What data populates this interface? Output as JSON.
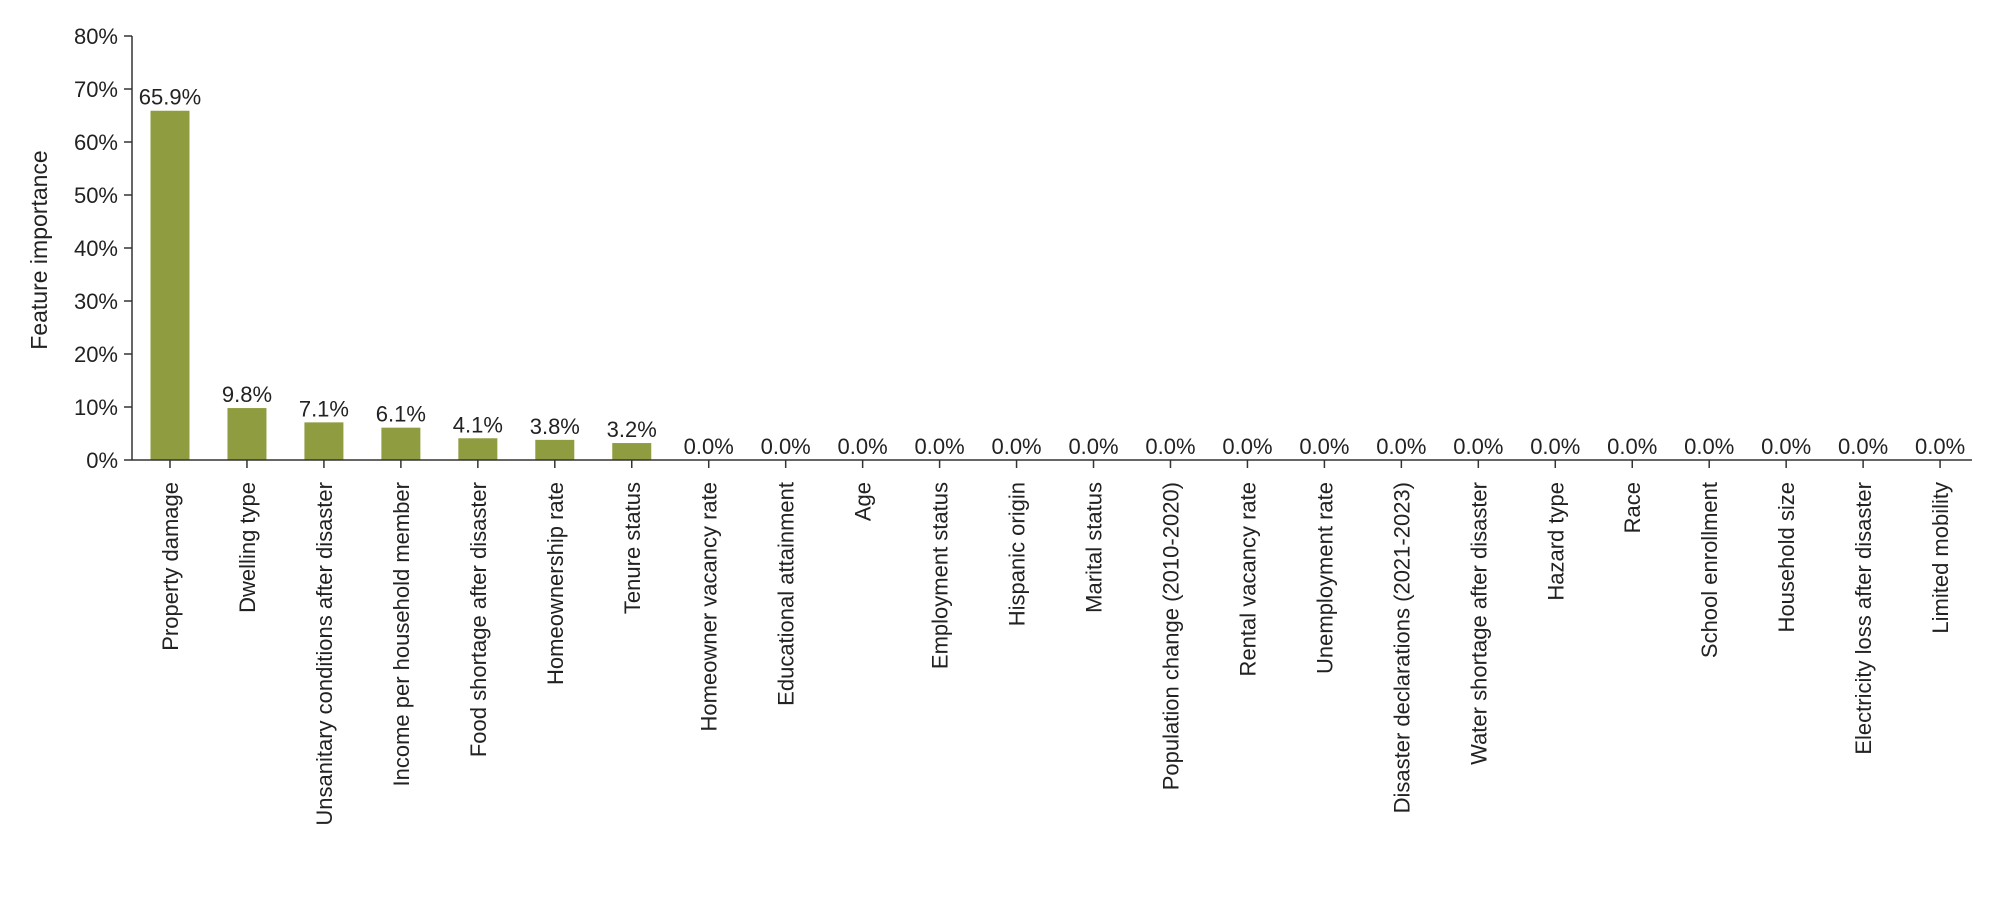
{
  "chart_data": {
    "type": "bar",
    "title": "",
    "xlabel": "",
    "ylabel": "Feature importance",
    "ylim": [
      0,
      80
    ],
    "yticks": [
      "0%",
      "10%",
      "20%",
      "30%",
      "40%",
      "50%",
      "60%",
      "70%",
      "80%"
    ],
    "bar_color": "#8f9c3f",
    "grid": false,
    "categories": [
      "Property damage",
      "Dwelling type",
      "Unsanitary conditions after disaster",
      "Income per household member",
      "Food shortage after disaster",
      "Homeownership rate",
      "Tenure status",
      "Homeowner vacancy rate",
      "Educational attainment",
      "Age",
      "Employment status",
      "Hispanic origin",
      "Marital status",
      "Population change (2010-2020)",
      "Rental vacancy rate",
      "Unemployment rate",
      "Disaster declarations (2021-2023)",
      "Water shortage after disaster",
      "Hazard type",
      "Race",
      "School enrollment",
      "Household size",
      "Electricity loss after disaster",
      "Limited mobility"
    ],
    "values": [
      65.9,
      9.8,
      7.1,
      6.1,
      4.1,
      3.8,
      3.2,
      0,
      0,
      0,
      0,
      0,
      0,
      0,
      0,
      0,
      0,
      0,
      0,
      0,
      0,
      0,
      0,
      0
    ],
    "value_labels": [
      "65.9%",
      "9.8%",
      "7.1%",
      "6.1%",
      "4.1%",
      "3.8%",
      "3.2%",
      "0.0%",
      "0.0%",
      "0.0%",
      "0.0%",
      "0.0%",
      "0.0%",
      "0.0%",
      "0.0%",
      "0.0%",
      "0.0%",
      "0.0%",
      "0.0%",
      "0.0%",
      "0.0%",
      "0.0%",
      "0.0%",
      "0.0%"
    ]
  }
}
